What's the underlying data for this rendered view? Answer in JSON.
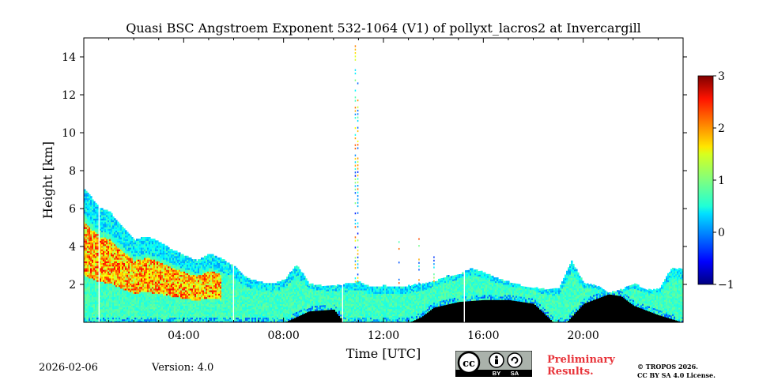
{
  "chart_data": {
    "type": "heatmap",
    "title": "Quasi BSC Angstroem Exponent 532-1064 (V1) of pollyxt_lacros2 at Invercargill",
    "xlabel": "Time [UTC]",
    "ylabel": "Height [km]",
    "xlim_hours": [
      0,
      24
    ],
    "ylim_km": [
      0,
      15
    ],
    "x_ticks": [
      {
        "value": 4,
        "label": "04:00"
      },
      {
        "value": 8,
        "label": "08:00"
      },
      {
        "value": 12,
        "label": "12:00"
      },
      {
        "value": 16,
        "label": "16:00"
      },
      {
        "value": 20,
        "label": "20:00"
      }
    ],
    "y_ticks": [
      {
        "value": 2,
        "label": "2"
      },
      {
        "value": 4,
        "label": "4"
      },
      {
        "value": 6,
        "label": "6"
      },
      {
        "value": 8,
        "label": "8"
      },
      {
        "value": 10,
        "label": "10"
      },
      {
        "value": 12,
        "label": "12"
      },
      {
        "value": 14,
        "label": "14"
      }
    ],
    "colorbar": {
      "range": [
        -1,
        3
      ],
      "ticks": [
        {
          "value": 3,
          "label": "3"
        },
        {
          "value": 2,
          "label": "2"
        },
        {
          "value": 1,
          "label": "1"
        },
        {
          "value": 0,
          "label": "0"
        },
        {
          "value": -1,
          "label": "−1"
        }
      ],
      "colormap": "jet"
    },
    "layer_top_km": [
      [
        0.0,
        7.0
      ],
      [
        0.3,
        6.5
      ],
      [
        0.6,
        6.0
      ],
      [
        1.0,
        5.8
      ],
      [
        1.5,
        5.0
      ],
      [
        2.0,
        4.3
      ],
      [
        2.5,
        4.5
      ],
      [
        3.0,
        4.2
      ],
      [
        3.5,
        3.8
      ],
      [
        4.0,
        3.5
      ],
      [
        4.5,
        3.2
      ],
      [
        5.0,
        3.6
      ],
      [
        5.5,
        3.3
      ],
      [
        6.0,
        2.9
      ],
      [
        6.5,
        2.3
      ],
      [
        7.0,
        2.1
      ],
      [
        7.5,
        2.0
      ],
      [
        8.0,
        2.2
      ],
      [
        8.5,
        3.0
      ],
      [
        9.0,
        2.0
      ],
      [
        9.5,
        1.9
      ],
      [
        10.0,
        1.9
      ],
      [
        10.5,
        2.0
      ],
      [
        11.0,
        2.1
      ],
      [
        11.5,
        1.8
      ],
      [
        12.0,
        1.9
      ],
      [
        12.5,
        1.8
      ],
      [
        13.0,
        1.9
      ],
      [
        13.5,
        2.0
      ],
      [
        14.0,
        2.1
      ],
      [
        14.5,
        2.4
      ],
      [
        15.0,
        2.5
      ],
      [
        15.5,
        2.8
      ],
      [
        16.0,
        2.6
      ],
      [
        16.5,
        2.3
      ],
      [
        17.0,
        2.1
      ],
      [
        17.5,
        1.9
      ],
      [
        18.0,
        1.8
      ],
      [
        18.5,
        1.7
      ],
      [
        19.0,
        1.8
      ],
      [
        19.5,
        3.2
      ],
      [
        20.0,
        2.0
      ],
      [
        20.5,
        1.9
      ],
      [
        21.0,
        1.5
      ],
      [
        21.5,
        1.7
      ],
      [
        22.0,
        2.0
      ],
      [
        22.5,
        1.7
      ],
      [
        23.0,
        1.7
      ],
      [
        23.5,
        2.8
      ],
      [
        24.0,
        2.8
      ]
    ],
    "signal_bottom_km": [
      [
        0.0,
        0.0
      ],
      [
        8.0,
        0.0
      ],
      [
        8.5,
        0.3
      ],
      [
        9.0,
        0.6
      ],
      [
        10.0,
        0.7
      ],
      [
        10.4,
        0.0
      ],
      [
        13.0,
        0.0
      ],
      [
        13.5,
        0.3
      ],
      [
        14.0,
        0.8
      ],
      [
        15.0,
        1.1
      ],
      [
        16.0,
        1.2
      ],
      [
        17.0,
        1.2
      ],
      [
        18.0,
        1.0
      ],
      [
        18.8,
        0.0
      ],
      [
        19.3,
        0.0
      ],
      [
        20.0,
        1.0
      ],
      [
        21.0,
        1.5
      ],
      [
        21.5,
        1.4
      ],
      [
        22.0,
        0.9
      ],
      [
        23.0,
        0.4
      ],
      [
        24.0,
        0.0
      ]
    ],
    "data_gaps_hours": [
      [
        0.52,
        0.58
      ],
      [
        5.92,
        5.98
      ],
      [
        10.3,
        10.38
      ],
      [
        15.17,
        15.22
      ]
    ],
    "vertical_streaks": [
      {
        "hour": 10.85,
        "top_km": 14.8
      },
      {
        "hour": 10.95,
        "top_km": 13.0
      },
      {
        "hour": 12.6,
        "top_km": 4.4
      },
      {
        "hour": 13.4,
        "top_km": 4.4
      },
      {
        "hour": 14.0,
        "top_km": 3.5
      }
    ]
  },
  "footer": {
    "date": "2026-02-06",
    "version": "Version: 4.0",
    "preliminary": "Preliminary Results.",
    "copyright_line1": "© TROPOS 2026.",
    "copyright_line2": "CC BY SA 4.0 License."
  },
  "badge": {
    "cc": "cc",
    "by": "BY",
    "sa": "SA"
  }
}
